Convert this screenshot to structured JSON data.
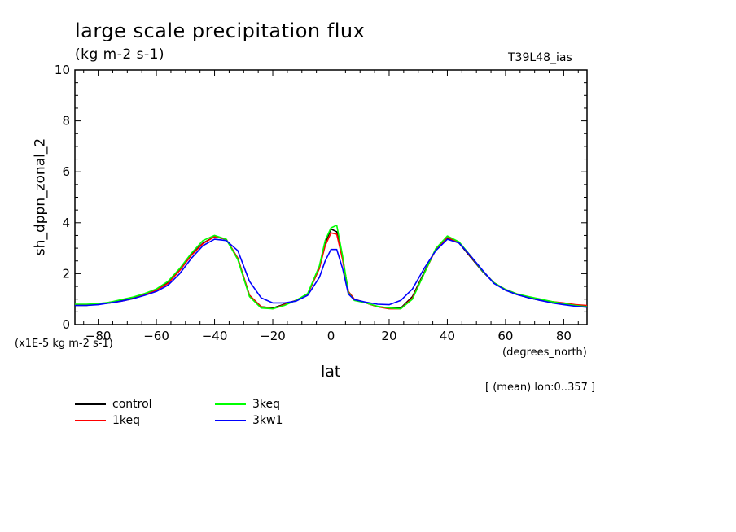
{
  "header": {
    "title": "large scale precipitation flux",
    "units": "(kg m-2 s-1)",
    "run": "T39L48_ias",
    "scale_note": "(x1E-5 kg m-2 s-1)",
    "x_unit": "(degrees_north)",
    "mean_note": "[ (mean) lon:0..357 ]"
  },
  "chart_data": {
    "type": "line",
    "xlabel": "lat",
    "ylabel": "sh_dppn_zonal_2",
    "xlim": [
      -88,
      88
    ],
    "ylim": [
      0,
      10
    ],
    "x_ticks": [
      -80,
      -60,
      -40,
      -20,
      0,
      20,
      40,
      60,
      80
    ],
    "x_tick_labels": [
      "−80",
      "−60",
      "−40",
      "−20",
      "0",
      "20",
      "40",
      "60",
      "80"
    ],
    "y_ticks": [
      0,
      2,
      4,
      6,
      8,
      10
    ],
    "y_tick_labels": [
      "0",
      "2",
      "4",
      "6",
      "8",
      "10"
    ],
    "grid": false,
    "legend": "bottom-left",
    "x": [
      -88,
      -84,
      -80,
      -76,
      -72,
      -68,
      -64,
      -60,
      -56,
      -52,
      -48,
      -44,
      -40,
      -36,
      -32,
      -28,
      -24,
      -20,
      -16,
      -12,
      -8,
      -4,
      -2,
      0,
      2,
      4,
      6,
      8,
      12,
      16,
      20,
      24,
      28,
      32,
      36,
      40,
      44,
      48,
      52,
      56,
      60,
      64,
      68,
      72,
      76,
      80,
      84,
      88
    ],
    "series": [
      {
        "name": "control",
        "color": "#000000",
        "values": [
          0.75,
          0.75,
          0.8,
          0.88,
          0.95,
          1.05,
          1.2,
          1.38,
          1.65,
          2.15,
          2.75,
          3.2,
          3.45,
          3.35,
          2.6,
          1.15,
          0.7,
          0.65,
          0.8,
          0.95,
          1.2,
          2.2,
          3.2,
          3.75,
          3.65,
          2.6,
          1.3,
          1.0,
          0.85,
          0.7,
          0.65,
          0.65,
          1.1,
          2.05,
          2.95,
          3.4,
          3.2,
          2.65,
          2.1,
          1.65,
          1.35,
          1.18,
          1.05,
          0.95,
          0.88,
          0.8,
          0.75,
          0.72
        ]
      },
      {
        "name": "1keq",
        "color": "#ff0000",
        "values": [
          0.78,
          0.78,
          0.8,
          0.85,
          0.92,
          1.02,
          1.18,
          1.35,
          1.62,
          2.12,
          2.72,
          3.18,
          3.45,
          3.35,
          2.6,
          1.15,
          0.7,
          0.62,
          0.78,
          0.95,
          1.2,
          2.2,
          3.1,
          3.6,
          3.55,
          2.55,
          1.3,
          1.0,
          0.85,
          0.7,
          0.62,
          0.62,
          1.05,
          2.0,
          2.95,
          3.42,
          3.22,
          2.68,
          2.12,
          1.65,
          1.38,
          1.2,
          1.08,
          0.98,
          0.9,
          0.85,
          0.78,
          0.75
        ]
      },
      {
        "name": "3keq",
        "color": "#00ff00",
        "values": [
          0.8,
          0.8,
          0.82,
          0.88,
          0.98,
          1.08,
          1.22,
          1.4,
          1.7,
          2.2,
          2.8,
          3.3,
          3.5,
          3.35,
          2.55,
          1.1,
          0.65,
          0.62,
          0.75,
          0.95,
          1.22,
          2.3,
          3.3,
          3.8,
          3.9,
          2.7,
          1.25,
          0.95,
          0.85,
          0.72,
          0.65,
          0.62,
          1.0,
          2.0,
          2.98,
          3.48,
          3.25,
          2.7,
          2.12,
          1.65,
          1.38,
          1.2,
          1.1,
          1.0,
          0.9,
          0.82,
          0.75,
          0.7
        ]
      },
      {
        "name": "3kw1",
        "color": "#0000ff",
        "values": [
          0.75,
          0.75,
          0.78,
          0.85,
          0.92,
          1.02,
          1.15,
          1.3,
          1.55,
          2.0,
          2.6,
          3.1,
          3.35,
          3.3,
          2.9,
          1.7,
          1.05,
          0.85,
          0.85,
          0.92,
          1.15,
          1.85,
          2.5,
          2.95,
          2.95,
          2.2,
          1.2,
          0.98,
          0.88,
          0.8,
          0.78,
          0.95,
          1.4,
          2.2,
          2.9,
          3.35,
          3.2,
          2.7,
          2.15,
          1.62,
          1.35,
          1.18,
          1.05,
          0.95,
          0.85,
          0.78,
          0.72,
          0.68
        ]
      }
    ]
  }
}
